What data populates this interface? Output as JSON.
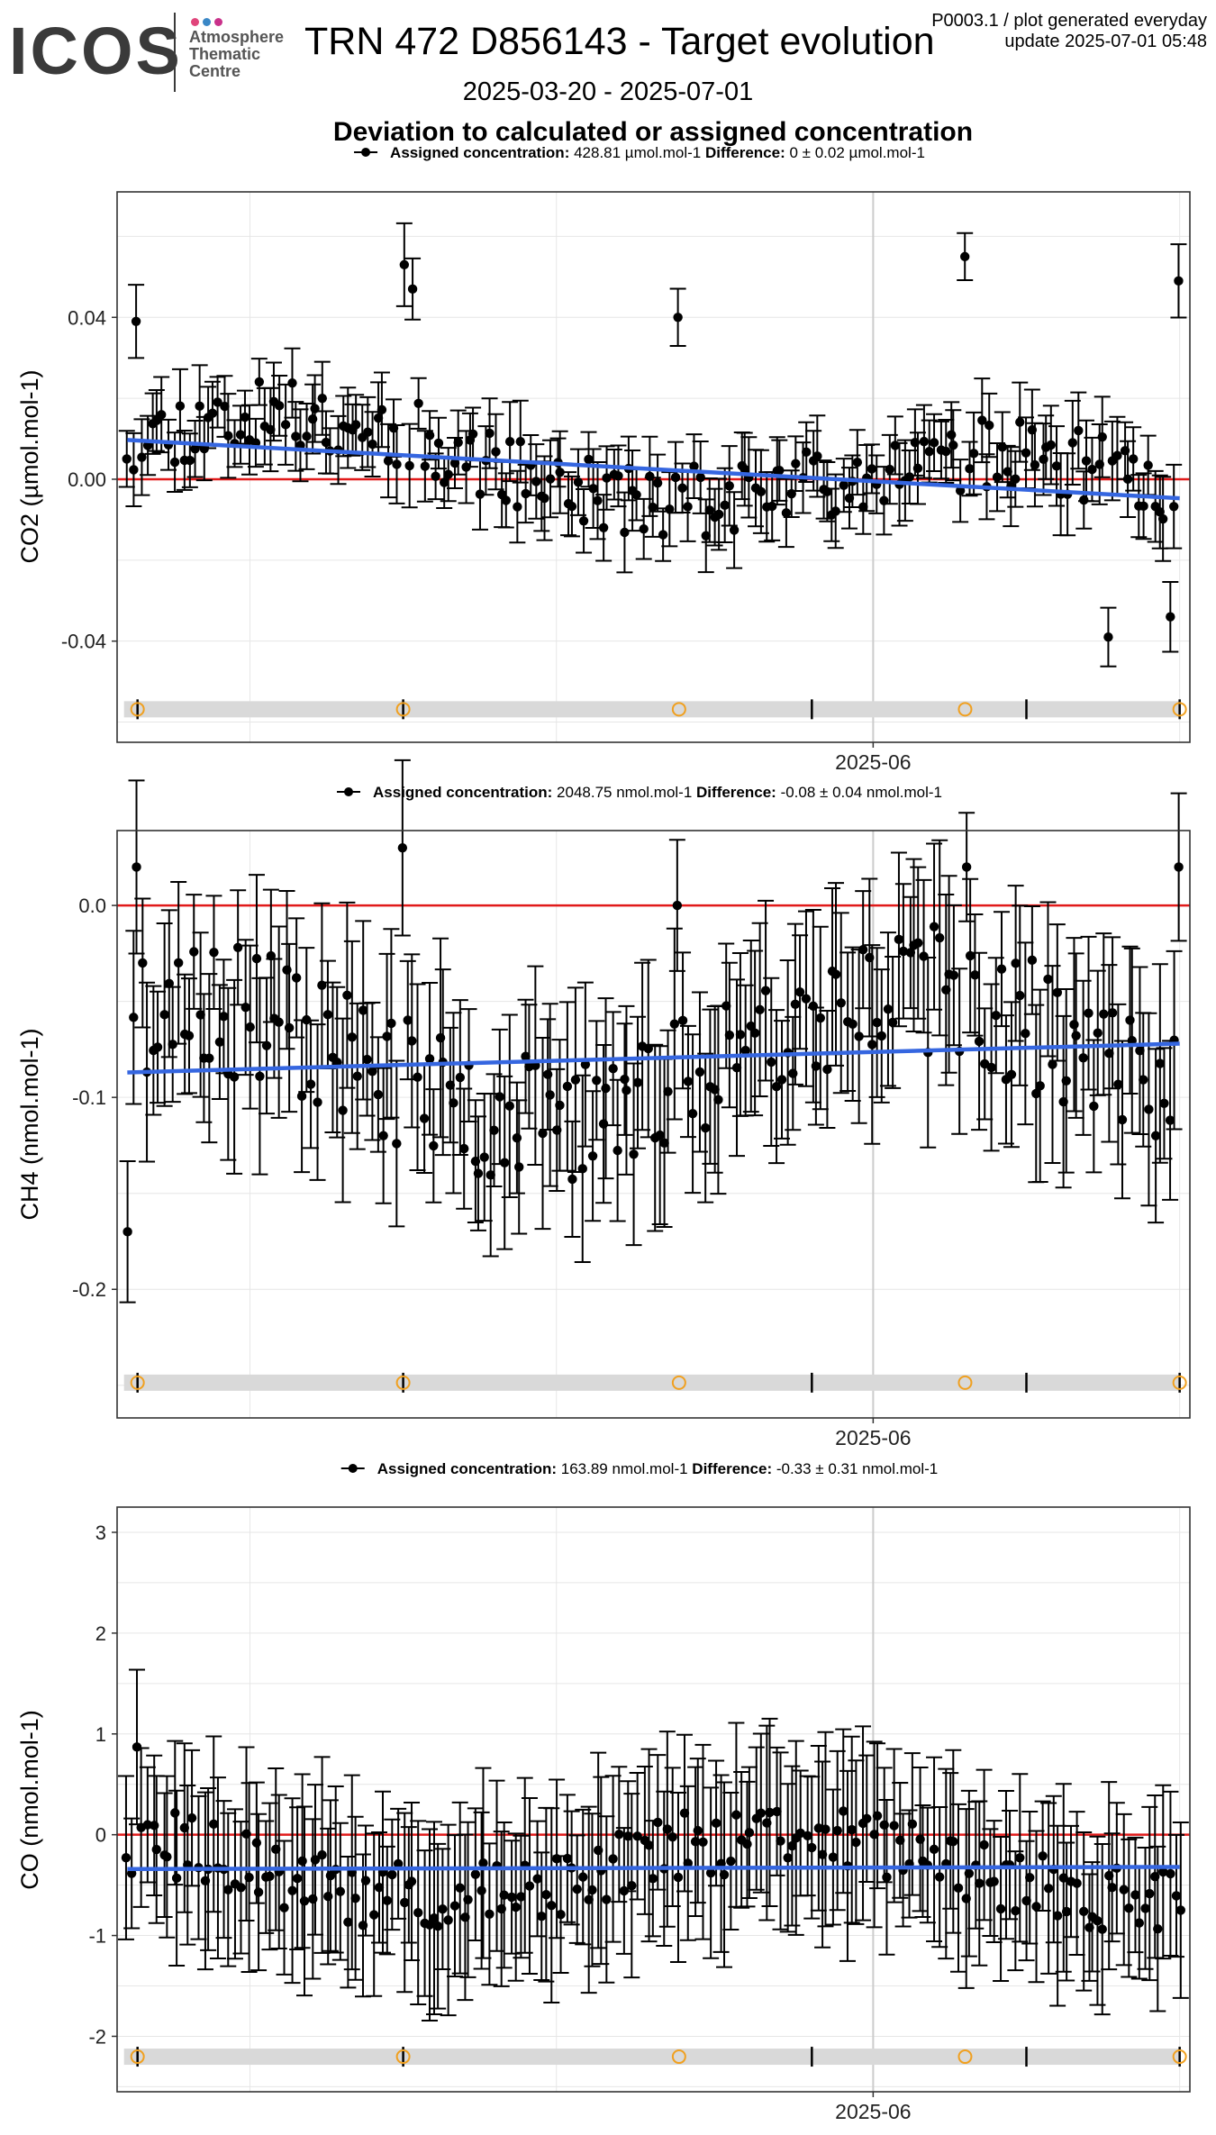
{
  "header": {
    "logo": "ICOS",
    "logo_sub": [
      "Atmosphere",
      "Thematic",
      "Centre"
    ],
    "title": "TRN 472 D856143 - Target evolution",
    "date_range": "2025-03-20 - 2025-07-01",
    "corner_note_line1": "P0003.1 / plot generated everyday",
    "corner_note_line2": "update  2025-07-01 05:48",
    "subtitle": "Deviation to calculated or assigned concentration"
  },
  "colors": {
    "points": "#000000",
    "reference_line": "#e11a1a",
    "trend_line": "#3566e0",
    "calibration_marker": "#f0a020",
    "calibration_band": "#d9d9d9",
    "panel_border": "#333333",
    "grid": "#e6e6e6",
    "logo_dots": [
      "#e0457b",
      "#3a87c6",
      "#c9318a"
    ]
  },
  "chart_data": [
    {
      "type": "scatter",
      "gas": "CO2",
      "ylabel": "CO2 (µmol.mol-1)",
      "legend_assigned_label": "Assigned concentration:",
      "legend_assigned_value": "428.81 µmol.mol-1",
      "legend_difference_label": "Difference:",
      "legend_difference_value": "0 ± 0.02 µmol.mol-1",
      "x_tick_labels": [
        "2025-06"
      ],
      "y_ticks": [
        "0.04",
        "0.00",
        "-0.04"
      ],
      "y_tick_values": [
        0.04,
        0.0,
        -0.04
      ],
      "ylim": [
        -0.065,
        0.071
      ],
      "xlim": [
        "2025-03-19",
        "2025-07-02"
      ],
      "reference_value": 0,
      "trend_start": 0.0097,
      "trend_end": -0.0047,
      "error_half_width_typical": 0.008,
      "trend_mean": 0.0025,
      "noise": 0.009,
      "seed": 11,
      "outliers": [
        {
          "x": "2025-03-21",
          "y": 0.039
        },
        {
          "x": "2025-04-16",
          "y": 0.053
        },
        {
          "x": "2025-04-17",
          "y": 0.047
        },
        {
          "x": "2025-05-13",
          "y": 0.04
        },
        {
          "x": "2025-06-10",
          "y": 0.055
        },
        {
          "x": "2025-07-01",
          "y": 0.049
        },
        {
          "x": "2025-06-24",
          "y": -0.039
        },
        {
          "x": "2025-06-30",
          "y": -0.034
        }
      ]
    },
    {
      "type": "scatter",
      "gas": "CH4",
      "ylabel": "CH4 (nmol.mol-1)",
      "legend_assigned_label": "Assigned concentration:",
      "legend_assigned_value": "2048.75 nmol.mol-1",
      "legend_difference_label": "Difference:",
      "legend_difference_value": "-0.08 ± 0.04 nmol.mol-1",
      "x_tick_labels": [
        "2025-06"
      ],
      "y_ticks": [
        "0.0",
        "-0.1",
        "-0.2"
      ],
      "y_tick_values": [
        0.0,
        -0.1,
        -0.2
      ],
      "ylim": [
        -0.267,
        0.039
      ],
      "xlim": [
        "2025-03-19",
        "2025-07-02"
      ],
      "reference_value": 0,
      "trend_start": -0.087,
      "trend_end": -0.072,
      "error_half_width_typical": 0.04,
      "trend_mean": -0.08,
      "noise": 0.035,
      "seed": 23,
      "outliers": [
        {
          "x": "2025-03-21",
          "y": 0.02
        },
        {
          "x": "2025-04-16",
          "y": 0.03
        },
        {
          "x": "2025-05-13",
          "y": 0.0
        },
        {
          "x": "2025-06-10",
          "y": 0.02
        },
        {
          "x": "2025-07-01",
          "y": 0.02
        },
        {
          "x": "2025-03-20",
          "y": -0.17
        }
      ]
    },
    {
      "type": "scatter",
      "gas": "CO",
      "ylabel": "CO (nmol.mol-1)",
      "legend_assigned_label": "Assigned concentration:",
      "legend_assigned_value": "163.89 nmol.mol-1",
      "legend_difference_label": "Difference:",
      "legend_difference_value": "-0.33 ± 0.31 nmol.mol-1",
      "x_tick_labels": [
        "2025-06"
      ],
      "y_ticks": [
        "3",
        "2",
        "1",
        "0",
        "-1",
        "-2"
      ],
      "y_tick_values": [
        3,
        2,
        1,
        0,
        -1,
        -2
      ],
      "ylim": [
        -2.55,
        3.25
      ],
      "xlim": [
        "2025-03-19",
        "2025-07-02"
      ],
      "reference_value": 0,
      "trend_start": -0.34,
      "trend_end": -0.32,
      "error_half_width_typical": 0.75,
      "trend_mean": -0.33,
      "noise": 0.35,
      "seed": 37,
      "outliers": [
        {
          "x": "2025-03-21",
          "y": 0.87
        }
      ]
    }
  ],
  "calibration_dates": [
    "2025-03-21",
    "2025-04-16",
    "2025-05-13",
    "2025-06-10",
    "2025-07-01"
  ],
  "segment_break_dates": [
    "2025-03-21",
    "2025-04-16",
    "2025-05-26",
    "2025-06-16",
    "2025-07-01"
  ]
}
